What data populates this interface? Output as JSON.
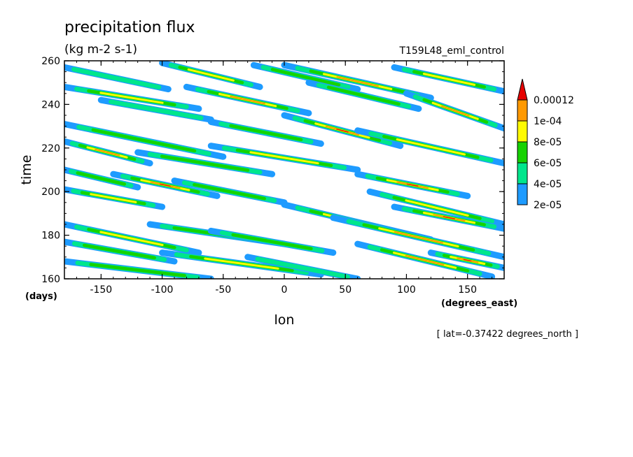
{
  "chart_data": {
    "type": "heatmap",
    "title": "precipitation flux",
    "units": "(kg m-2 s-1)",
    "experiment": "T159L48_eml_control",
    "xlabel": "lon",
    "x_units": "(degrees_east)",
    "ylabel": "time",
    "y_units": "(days)",
    "footnote": "[ lat=-0.37422 degrees_north ]",
    "xlim": [
      -180,
      180
    ],
    "ylim": [
      160,
      260
    ],
    "x_ticks": [
      -150,
      -100,
      -50,
      0,
      50,
      100,
      150
    ],
    "y_ticks": [
      160,
      180,
      200,
      220,
      240,
      260
    ],
    "x_tick_labels": [
      "-150",
      "-100",
      "-50",
      "0",
      "50",
      "100",
      "150"
    ],
    "y_tick_labels": [
      "160",
      "180",
      "200",
      "220",
      "240",
      "260"
    ],
    "colorbar": {
      "levels": [
        2e-05,
        4e-05,
        6e-05,
        8e-05,
        0.0001,
        0.00012
      ],
      "labels": [
        "2e-05",
        "4e-05",
        "6e-05",
        "8e-05",
        "1e-04",
        "0.00012"
      ],
      "colors": [
        "#1e9bff",
        "#00e68c",
        "#16d200",
        "#fffa00",
        "#ff9900",
        "#e60000"
      ]
    },
    "streaks": [
      {
        "x0": -180,
        "y0": 257,
        "x1": -95,
        "y1": 247,
        "peak": 5e-05
      },
      {
        "x0": -100,
        "y0": 259,
        "x1": -20,
        "y1": 248,
        "peak": 9.5e-05
      },
      {
        "x0": -25,
        "y0": 258,
        "x1": 60,
        "y1": 247,
        "peak": 7e-05
      },
      {
        "x0": 0,
        "y0": 258,
        "x1": 120,
        "y1": 243,
        "peak": 0.00011
      },
      {
        "x0": 90,
        "y0": 257,
        "x1": 180,
        "y1": 246,
        "peak": 8.5e-05
      },
      {
        "x0": -180,
        "y0": 248,
        "x1": -70,
        "y1": 238,
        "peak": 9e-05
      },
      {
        "x0": -80,
        "y0": 248,
        "x1": 20,
        "y1": 236,
        "peak": 0.0001
      },
      {
        "x0": 20,
        "y0": 250,
        "x1": 110,
        "y1": 238,
        "peak": 7.5e-05
      },
      {
        "x0": 100,
        "y0": 245,
        "x1": 180,
        "y1": 229,
        "peak": 0.000115
      },
      {
        "x0": -150,
        "y0": 242,
        "x1": -60,
        "y1": 233,
        "peak": 5e-05
      },
      {
        "x0": -180,
        "y0": 231,
        "x1": -50,
        "y1": 216,
        "peak": 7e-05
      },
      {
        "x0": -60,
        "y0": 232,
        "x1": 30,
        "y1": 222,
        "peak": 6.5e-05
      },
      {
        "x0": 0,
        "y0": 235,
        "x1": 95,
        "y1": 221,
        "peak": 0.000125
      },
      {
        "x0": 60,
        "y0": 228,
        "x1": 180,
        "y1": 213,
        "peak": 9e-05
      },
      {
        "x0": -180,
        "y0": 223,
        "x1": -110,
        "y1": 213,
        "peak": 0.0001
      },
      {
        "x0": -120,
        "y0": 218,
        "x1": -10,
        "y1": 208,
        "peak": 6.5e-05
      },
      {
        "x0": -60,
        "y0": 221,
        "x1": 60,
        "y1": 210,
        "peak": 8e-05
      },
      {
        "x0": -180,
        "y0": 210,
        "x1": -120,
        "y1": 202,
        "peak": 6e-05
      },
      {
        "x0": -140,
        "y0": 208,
        "x1": -55,
        "y1": 198,
        "peak": 0.00013
      },
      {
        "x0": -180,
        "y0": 201,
        "x1": -100,
        "y1": 193,
        "peak": 9e-05
      },
      {
        "x0": -90,
        "y0": 205,
        "x1": 0,
        "y1": 195,
        "peak": 6e-05
      },
      {
        "x0": 0,
        "y0": 194,
        "x1": 120,
        "y1": 178,
        "peak": 0.00013
      },
      {
        "x0": 60,
        "y0": 208,
        "x1": 150,
        "y1": 198,
        "peak": 0.00012
      },
      {
        "x0": 70,
        "y0": 200,
        "x1": 180,
        "y1": 185,
        "peak": 8.5e-05
      },
      {
        "x0": 90,
        "y0": 193,
        "x1": 180,
        "y1": 183,
        "peak": 0.000125
      },
      {
        "x0": 40,
        "y0": 188,
        "x1": 180,
        "y1": 170,
        "peak": 0.00011
      },
      {
        "x0": -180,
        "y0": 185,
        "x1": -70,
        "y1": 172,
        "peak": 8e-05
      },
      {
        "x0": -110,
        "y0": 185,
        "x1": 0,
        "y1": 176,
        "peak": 6.5e-05
      },
      {
        "x0": -60,
        "y0": 182,
        "x1": 40,
        "y1": 172,
        "peak": 6e-05
      },
      {
        "x0": -180,
        "y0": 177,
        "x1": -90,
        "y1": 168,
        "peak": 7e-05
      },
      {
        "x0": -100,
        "y0": 172,
        "x1": 30,
        "y1": 162,
        "peak": 8e-05
      },
      {
        "x0": 60,
        "y0": 176,
        "x1": 170,
        "y1": 161,
        "peak": 0.0001
      },
      {
        "x0": 120,
        "y0": 172,
        "x1": 180,
        "y1": 165,
        "peak": 0.00013
      },
      {
        "x0": -180,
        "y0": 168,
        "x1": -60,
        "y1": 160,
        "peak": 6e-05
      },
      {
        "x0": -30,
        "y0": 170,
        "x1": 60,
        "y1": 160,
        "peak": 5.5e-05
      }
    ]
  }
}
